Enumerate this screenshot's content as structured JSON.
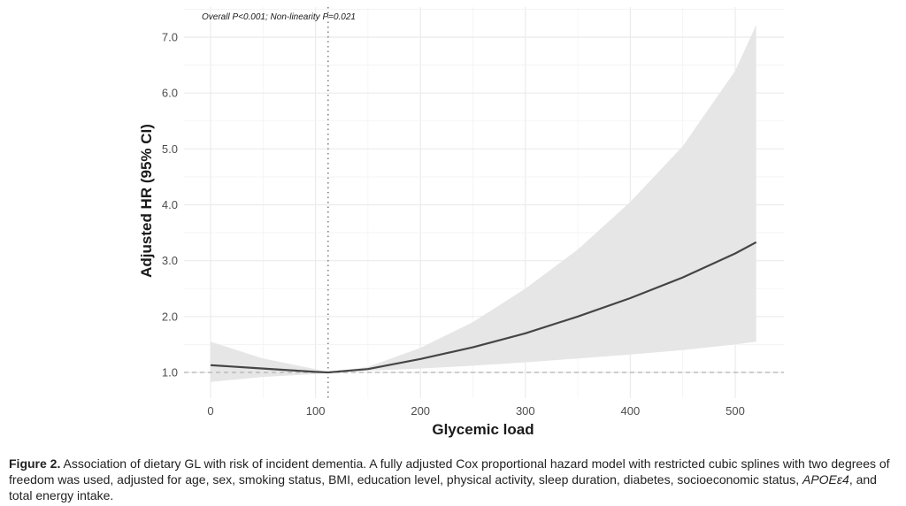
{
  "chart_data": {
    "type": "line",
    "annotation": "Overall P<0.001; Non-linearity P=0.021",
    "xlabel": "Glycemic load",
    "ylabel": "Adjusted HR (95% CI)",
    "xlim": [
      0,
      520
    ],
    "ylim": [
      0.5,
      7.5
    ],
    "x_ticks": [
      "0",
      "100",
      "200",
      "300",
      "400",
      "500"
    ],
    "x_tick_values": [
      0,
      100,
      200,
      300,
      400,
      500
    ],
    "y_ticks": [
      "1.0",
      "2.0",
      "3.0",
      "4.0",
      "5.0",
      "6.0",
      "7.0"
    ],
    "y_tick_values": [
      1,
      2,
      3,
      4,
      5,
      6,
      7
    ],
    "reference_hr": 1.0,
    "reference_x": 112,
    "grid": true,
    "series": [
      {
        "x": [
          0,
          50,
          100,
          112,
          150,
          200,
          250,
          300,
          350,
          400,
          450,
          500,
          520
        ],
        "y": [
          1.13,
          1.07,
          1.01,
          1.0,
          1.06,
          1.24,
          1.45,
          1.7,
          2.0,
          2.33,
          2.7,
          3.13,
          3.33
        ],
        "lower": [
          0.83,
          0.92,
          0.97,
          1.0,
          1.03,
          1.07,
          1.12,
          1.18,
          1.25,
          1.32,
          1.4,
          1.5,
          1.55
        ],
        "upper": [
          1.55,
          1.25,
          1.06,
          1.0,
          1.1,
          1.44,
          1.9,
          2.5,
          3.2,
          4.05,
          5.05,
          6.4,
          7.22
        ]
      }
    ],
    "colors": {
      "line": "#454545",
      "band": "#e6e6e6",
      "grid": "#ebebeb",
      "reference": "#b3b3b3",
      "vline": "#7a7a7a"
    }
  },
  "caption": {
    "label": "Figure 2.",
    "text": " Association of dietary GL with risk of incident dementia. A fully adjusted Cox proportional hazard model with restricted cubic splines with two degrees of freedom was used, adjusted for age, sex, smoking status, BMI, education level, physical activity, sleep duration, diabetes, socioeconomic status, ",
    "italic": "APOEε4",
    "tail": ", and total energy intake."
  }
}
